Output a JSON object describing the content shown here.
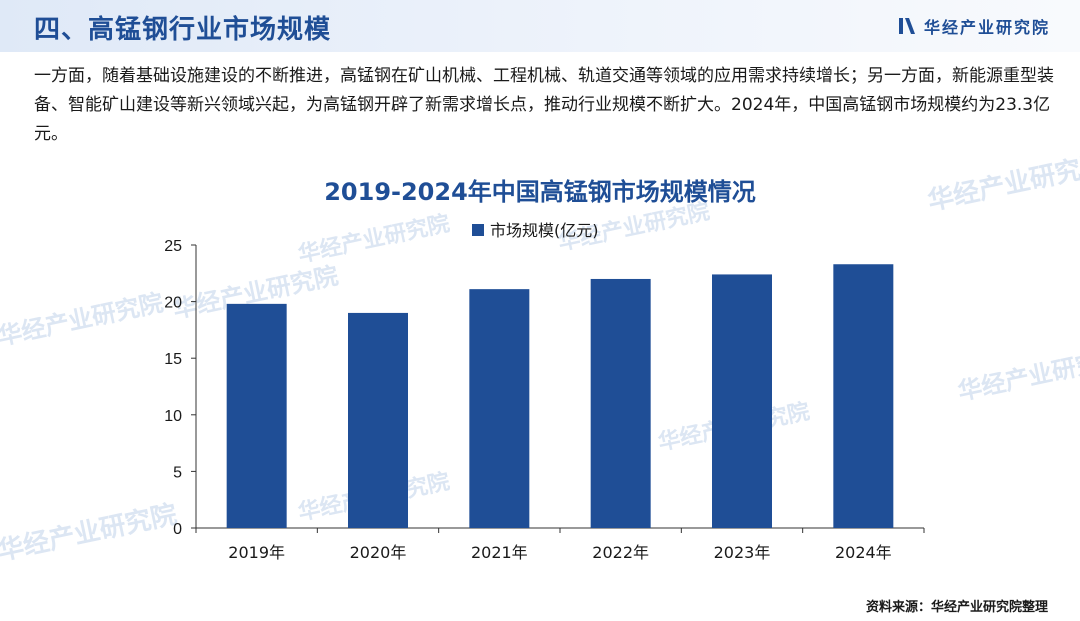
{
  "header": {
    "title": "四、高锰钢行业市场规模",
    "logo_text": "华经产业研究院"
  },
  "paragraph": "一方面，随着基础设施建设的不断推进，高锰钢在矿山机械、工程机械、轨道交通等领域的应用需求持续增长；另一方面，新能源重型装备、智能矿山建设等新兴领域兴起，为高锰钢开辟了新需求增长点，推动行业规模不断扩大。2024年，中国高锰钢市场规模约为23.3亿元。",
  "watermark_text": "华经产业研究院",
  "source": "资料来源：华经产业研究院整理",
  "colors": {
    "accent": "#1f4e96",
    "bar": "#1f4e96",
    "header_band": "#e4ecf8"
  },
  "chart_data": {
    "type": "bar",
    "title": "2019-2024年中国高锰钢市场规模情况",
    "categories": [
      "2019年",
      "2020年",
      "2021年",
      "2022年",
      "2023年",
      "2024年"
    ],
    "series": [
      {
        "name": "市场规模(亿元)",
        "values": [
          19.8,
          19.0,
          21.1,
          22.0,
          22.4,
          23.3
        ]
      }
    ],
    "yticks": [
      0,
      5,
      10,
      15,
      20,
      25
    ],
    "ylim": [
      0,
      25
    ],
    "grid": false,
    "legend": "top-center"
  }
}
